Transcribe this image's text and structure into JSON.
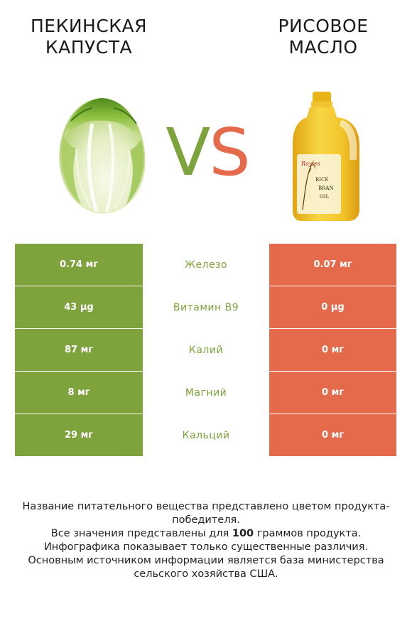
{
  "header": {
    "left_title": "ПЕКИНСКАЯ\nКАПУСТА",
    "right_title": "РИСОВОЕ\nМАСЛО",
    "vs_v": "V",
    "vs_s": "S"
  },
  "images": {
    "left": "chinese-cabbage-image",
    "right": "rice-bran-oil-bottle-image",
    "bottle_label_brand": "Royles",
    "bottle_label_text": [
      "RICE",
      "BRAN",
      "OIL"
    ]
  },
  "colors": {
    "winner_left": "#7ea23c",
    "winner_right": "#e46a4b"
  },
  "rows": [
    {
      "left": "0.74 мг",
      "nutrient": "Железо",
      "right": "0.07 мг"
    },
    {
      "left": "43 µg",
      "nutrient": "Витамин B9",
      "right": "0 µg"
    },
    {
      "left": "87 мг",
      "nutrient": "Калий",
      "right": "0 мг"
    },
    {
      "left": "8 мг",
      "nutrient": "Магний",
      "right": "0 мг"
    },
    {
      "left": "29 мг",
      "nutrient": "Кальций",
      "right": "0 мг"
    }
  ],
  "footer": {
    "line1": "Название питательного вещества представлено цветом продукта-победителя.",
    "line2_pre": "Все значения представлены для ",
    "line2_bold": "100",
    "line2_post": " граммов продукта.",
    "line3": "Инфографика показывает только существенные различия.",
    "line4": "Основным источником информации является база министерства сельского хозяйства США."
  }
}
